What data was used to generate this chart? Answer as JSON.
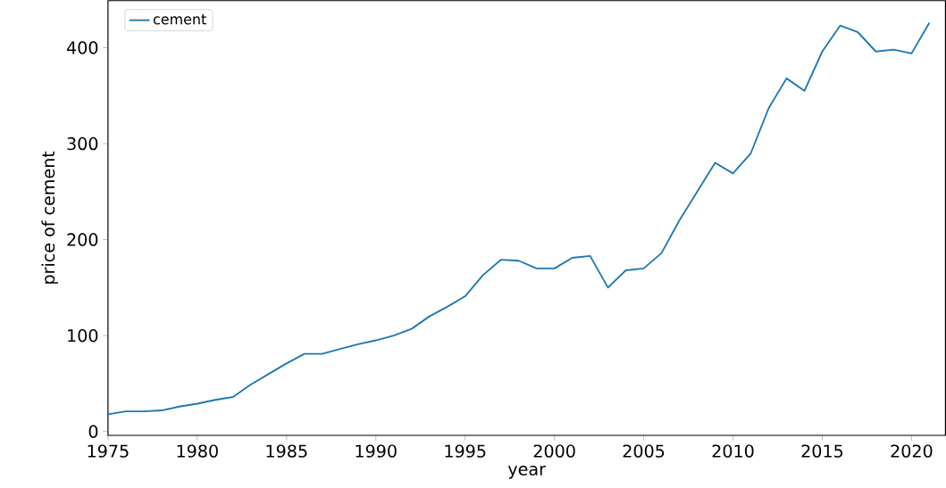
{
  "chart_data": {
    "type": "line",
    "xlabel": "year",
    "ylabel": "price of cement",
    "x": [
      1975,
      1976,
      1977,
      1978,
      1979,
      1980,
      1981,
      1982,
      1983,
      1984,
      1985,
      1986,
      1987,
      1988,
      1989,
      1990,
      1991,
      1992,
      1993,
      1994,
      1995,
      1996,
      1997,
      1998,
      1999,
      2000,
      2001,
      2002,
      2003,
      2004,
      2005,
      2006,
      2007,
      2008,
      2009,
      2010,
      2011,
      2012,
      2013,
      2014,
      2015,
      2016,
      2017,
      2018,
      2019,
      2020,
      2021
    ],
    "series": [
      {
        "name": "cement",
        "color": "#1f77b4",
        "values": [
          18,
          21,
          21,
          22,
          26,
          29,
          33,
          36,
          49,
          60,
          71,
          81,
          81,
          86,
          91,
          95,
          100,
          107,
          120,
          130,
          141,
          163,
          179,
          178,
          170,
          170,
          181,
          183,
          150,
          168,
          170,
          186,
          220,
          250,
          280,
          269,
          290,
          337,
          368,
          355,
          396,
          423,
          416,
          396,
          398,
          394,
          426
        ]
      }
    ],
    "xlim": [
      1975,
      2021.9
    ],
    "ylim": [
      -4,
      449
    ],
    "xticks": [
      1975,
      1980,
      1985,
      1990,
      1995,
      2000,
      2005,
      2010,
      2015,
      2020
    ],
    "yticks": [
      0,
      100,
      200,
      300,
      400
    ],
    "legend": "top left",
    "grid": false
  }
}
